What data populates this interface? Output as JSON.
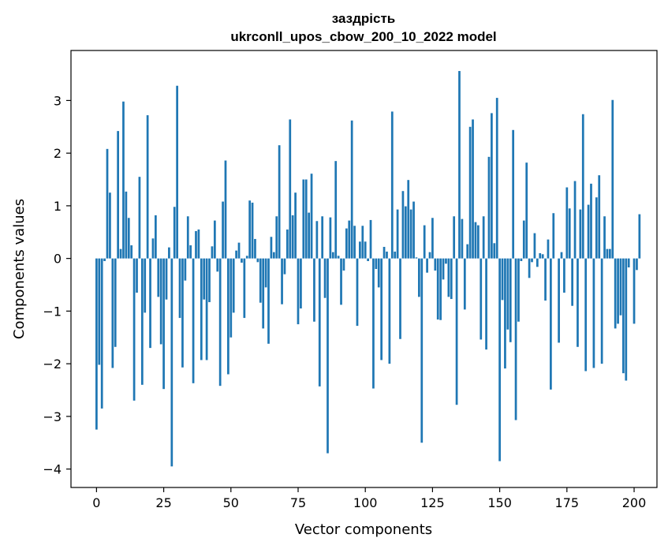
{
  "chart_data": {
    "type": "bar",
    "title": "заздрість",
    "subtitle": "ukrconll_upos_cbow_200_10_2022 model",
    "xlabel": "Vector components",
    "ylabel": "Components values",
    "xlim": [
      -9.5,
      208.5
    ],
    "ylim": [
      -4.35,
      3.95
    ],
    "xticks": [
      0,
      25,
      50,
      75,
      100,
      125,
      150,
      175,
      200
    ],
    "yticks": [
      -4,
      -3,
      -2,
      -1,
      0,
      1,
      2,
      3
    ],
    "ytick_labels": [
      "−4",
      "−3",
      "−2",
      "−1",
      "0",
      "1",
      "2",
      "3"
    ],
    "bar_color": "#1f77b4",
    "grid": false,
    "values": [
      -3.25,
      -2.02,
      -2.85,
      -0.05,
      2.08,
      1.25,
      -2.08,
      -1.68,
      2.42,
      0.18,
      2.98,
      1.27,
      0.77,
      0.25,
      -2.7,
      -0.65,
      1.55,
      -2.4,
      -1.03,
      2.72,
      -1.7,
      0.38,
      0.82,
      -0.73,
      -1.63,
      -2.48,
      -0.78,
      0.21,
      -3.95,
      0.98,
      3.28,
      -1.13,
      -2.07,
      -0.42,
      0.8,
      0.25,
      -2.37,
      0.52,
      0.55,
      -1.93,
      -0.78,
      -1.93,
      -0.83,
      0.23,
      0.72,
      -0.25,
      -2.42,
      1.08,
      1.86,
      -2.2,
      -1.5,
      -1.03,
      0.15,
      0.3,
      -0.08,
      -1.13,
      0.05,
      1.1,
      1.06,
      0.37,
      -0.07,
      -0.84,
      -1.33,
      -0.55,
      -1.62,
      0.41,
      0.12,
      0.8,
      2.15,
      -0.87,
      -0.3,
      0.55,
      2.64,
      0.82,
      1.25,
      -1.25,
      -0.95,
      1.5,
      1.5,
      0.87,
      1.61,
      -1.2,
      0.71,
      -2.43,
      0.8,
      -0.75,
      -3.7,
      0.78,
      0.12,
      1.85,
      0.05,
      -0.88,
      -0.23,
      0.57,
      0.72,
      2.62,
      0.62,
      -1.28,
      0.32,
      0.62,
      0.32,
      -0.05,
      0.73,
      -2.47,
      -0.2,
      -0.55,
      -1.93,
      0.22,
      0.13,
      -2.0,
      2.79,
      0.13,
      0.93,
      -1.53,
      1.28,
      0.99,
      1.49,
      0.93,
      1.08,
      0.02,
      -0.73,
      -3.5,
      0.63,
      -0.27,
      0.12,
      0.77,
      -0.23,
      -1.16,
      -1.17,
      -0.4,
      -0.1,
      -0.73,
      -0.77,
      0.8,
      -2.78,
      3.56,
      0.75,
      -0.97,
      0.27,
      2.5,
      2.64,
      0.69,
      0.63,
      -1.54,
      0.8,
      -1.73,
      1.93,
      2.76,
      0.29,
      3.05,
      -3.85,
      -0.79,
      -2.09,
      -1.35,
      -1.59,
      2.44,
      -3.07,
      -1.2,
      -0.05,
      0.72,
      1.82,
      -0.37,
      -0.07,
      0.48,
      -0.16,
      0.1,
      0.08,
      -0.8,
      0.36,
      -2.49,
      0.86,
      0.0,
      -1.6,
      0.12,
      -0.65,
      1.35,
      0.95,
      -0.9,
      1.47,
      -1.68,
      0.93,
      2.74,
      -2.14,
      1.02,
      1.42,
      -2.08,
      1.16,
      1.58,
      -2.0,
      0.8,
      0.18,
      0.18,
      3.01,
      -1.33,
      -1.24,
      -1.08,
      -2.18,
      -2.32,
      -0.17,
      0.0,
      -1.24,
      -0.22,
      0.84
    ]
  }
}
